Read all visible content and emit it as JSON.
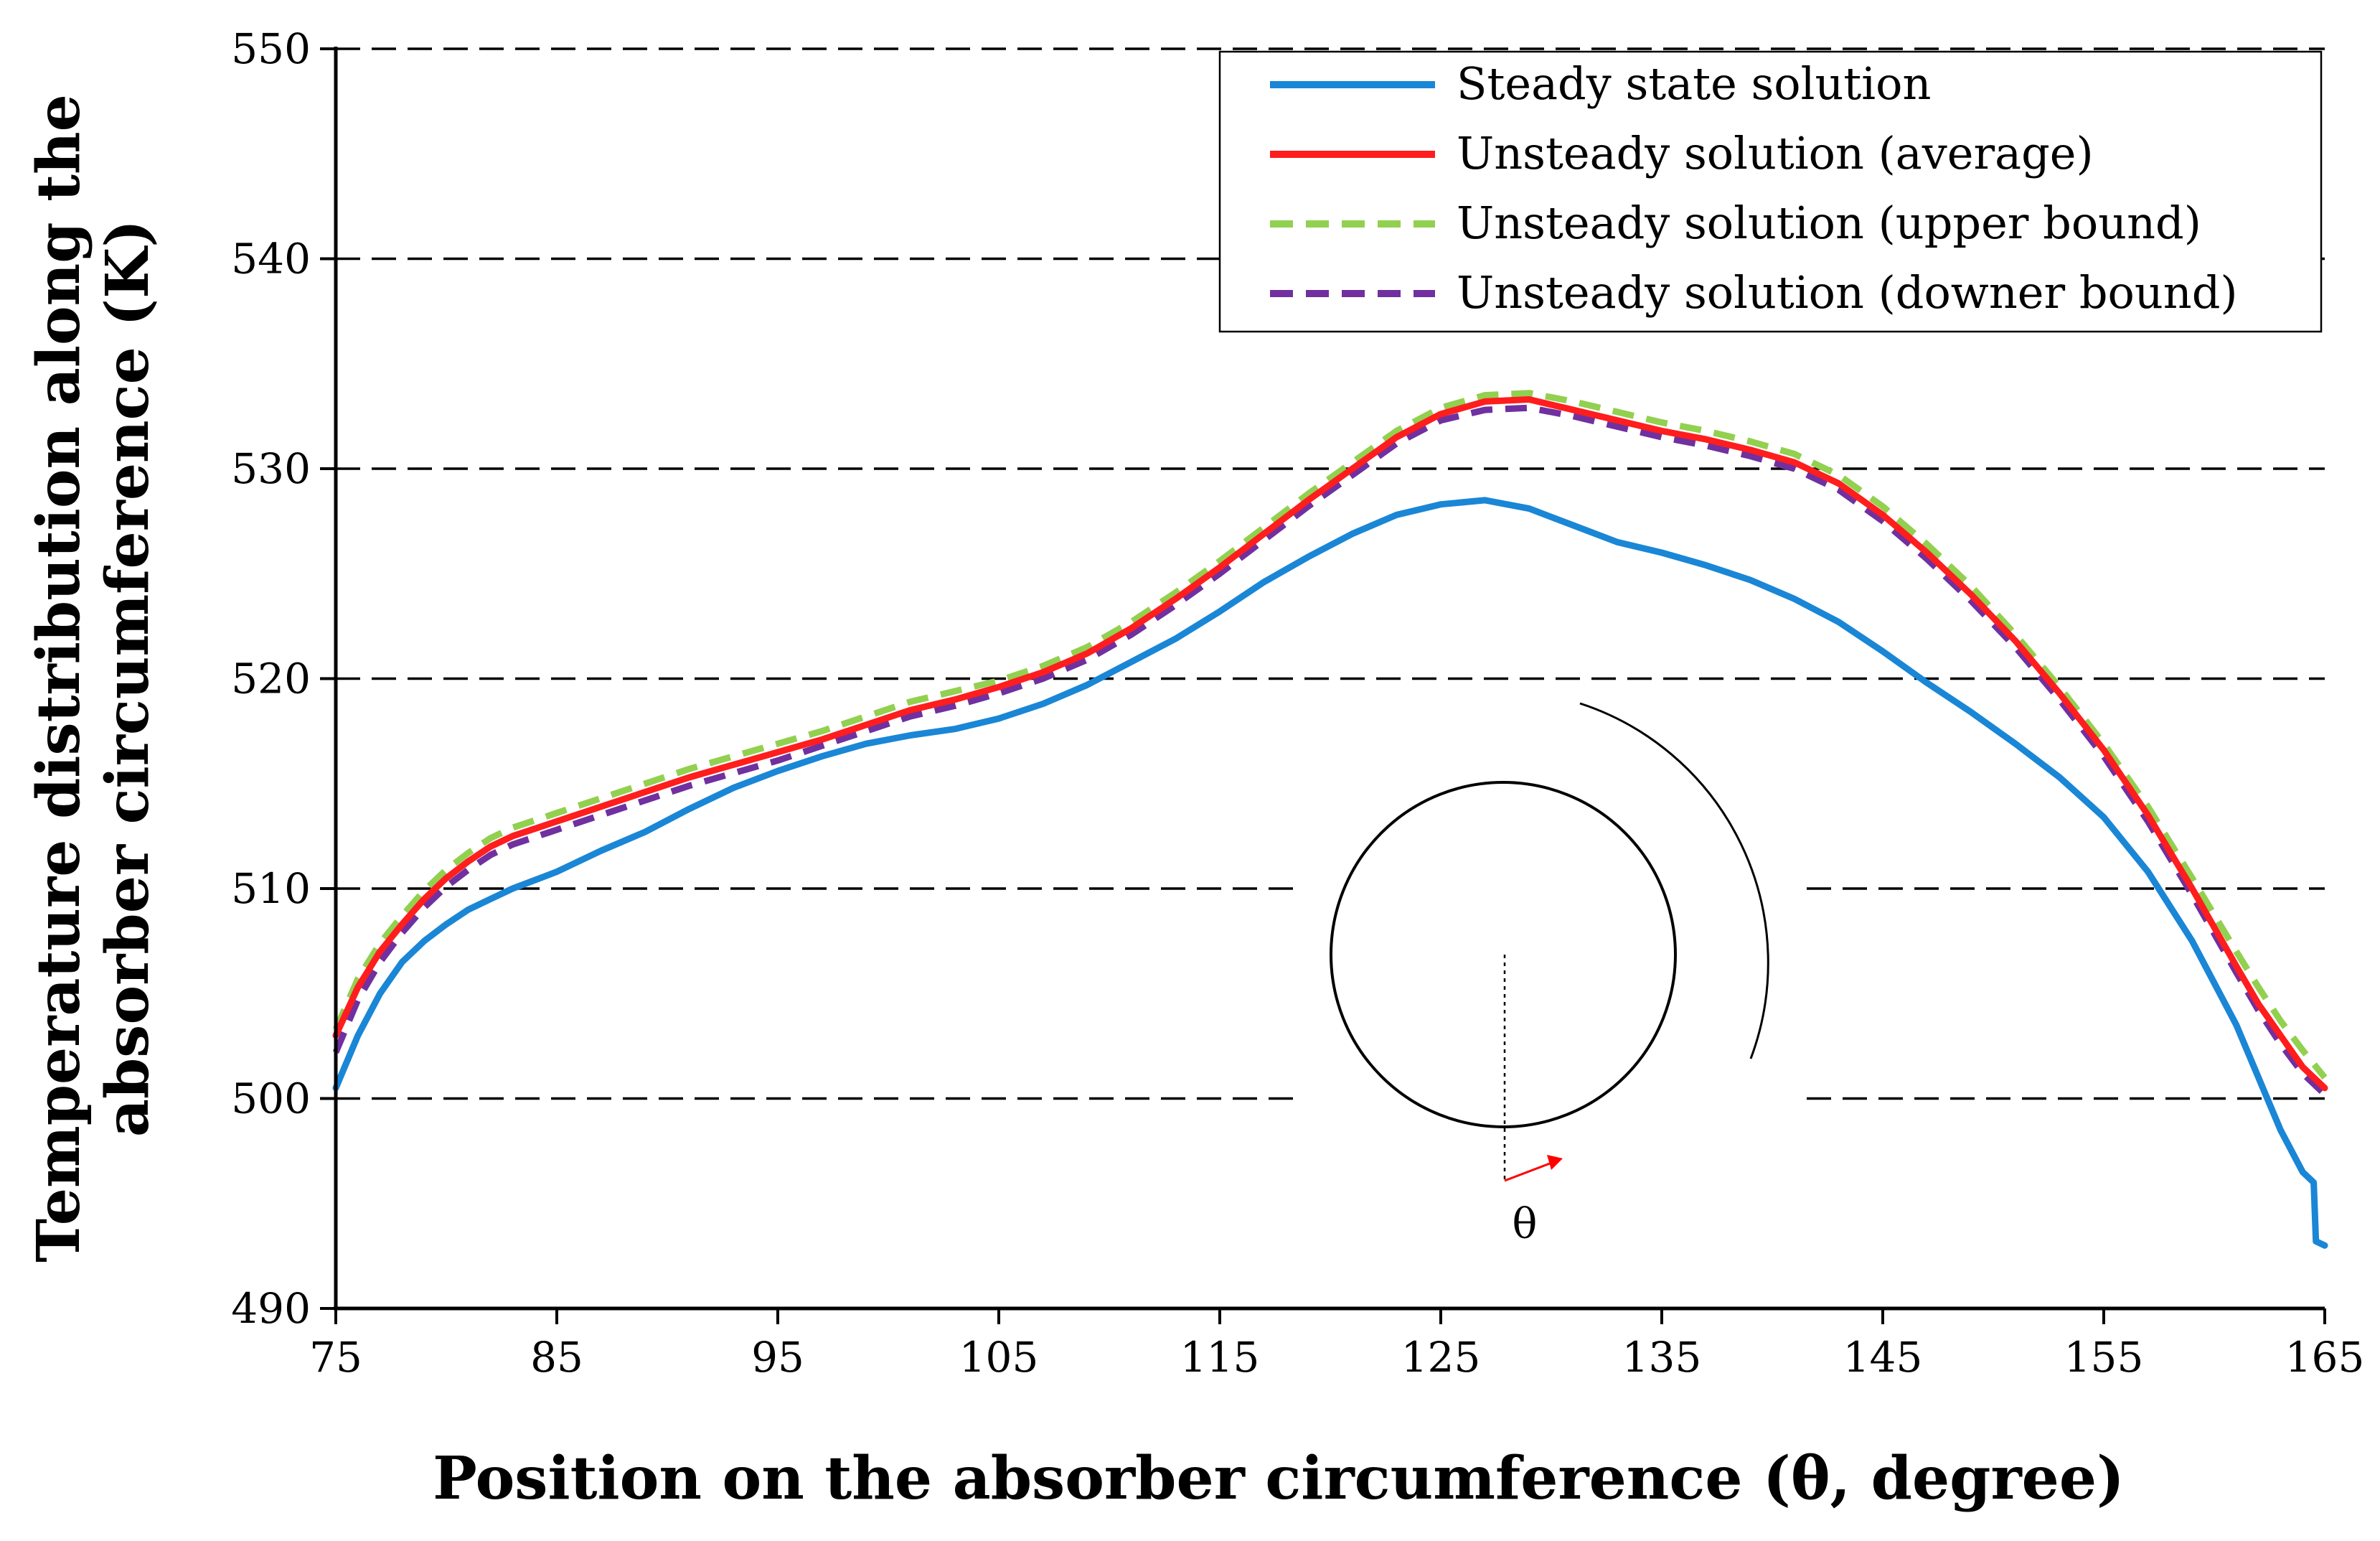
{
  "chart_data": {
    "type": "line",
    "title": "",
    "xlabel": "Position on the absorber circumference (θ, degree)",
    "ylabel_line1": "Temperature distribution  along the",
    "ylabel_line2": "absorber circumference (K)",
    "xlim": [
      75,
      165
    ],
    "ylim": [
      490,
      550
    ],
    "xticks": [
      75,
      85,
      95,
      105,
      115,
      125,
      135,
      145,
      155,
      165
    ],
    "yticks": [
      490,
      500,
      510,
      520,
      530,
      540,
      550
    ],
    "grid": "horizontal-dashed",
    "legend_position": "top-right",
    "inset_label": "θ",
    "series": [
      {
        "name": "Steady state solution",
        "color": "#1a86d6",
        "dash": "solid",
        "x": [
          75,
          76,
          77,
          78,
          79,
          80,
          81,
          82,
          83,
          85,
          87,
          89,
          91,
          93,
          95,
          97,
          99,
          101,
          103,
          105,
          107,
          109,
          111,
          113,
          115,
          117,
          119,
          121,
          123,
          125,
          127,
          129,
          131,
          133,
          135,
          137,
          139,
          141,
          143,
          145,
          147,
          149,
          151,
          153,
          155,
          157,
          159,
          161,
          162,
          163,
          164,
          164.5,
          164.6,
          165
        ],
        "values": [
          500.5,
          503.0,
          505.0,
          506.5,
          507.5,
          508.3,
          509.0,
          509.5,
          510.0,
          510.8,
          511.8,
          512.7,
          513.8,
          514.8,
          515.6,
          516.3,
          516.9,
          517.3,
          517.6,
          518.1,
          518.8,
          519.7,
          520.8,
          521.9,
          523.2,
          524.6,
          525.8,
          526.9,
          527.8,
          528.3,
          528.5,
          528.1,
          527.3,
          526.5,
          526.0,
          525.4,
          524.7,
          523.8,
          522.7,
          521.3,
          519.8,
          518.4,
          516.9,
          515.3,
          513.4,
          510.8,
          507.5,
          503.5,
          501.0,
          498.5,
          496.5,
          496.0,
          493.2,
          493.0
        ]
      },
      {
        "name": "Unsteady solution (average)",
        "color": "#ff1d1d",
        "dash": "solid",
        "x": [
          75,
          76,
          77,
          78,
          79,
          80,
          81,
          82,
          83,
          85,
          87,
          89,
          91,
          93,
          95,
          97,
          99,
          101,
          103,
          105,
          107,
          109,
          111,
          113,
          115,
          117,
          119,
          121,
          123,
          125,
          127,
          129,
          131,
          133,
          135,
          137,
          139,
          141,
          143,
          145,
          147,
          149,
          151,
          153,
          155,
          157,
          159,
          161,
          162,
          163,
          164,
          165
        ],
        "values": [
          503.0,
          505.3,
          507.0,
          508.3,
          509.5,
          510.5,
          511.3,
          512.0,
          512.5,
          513.2,
          513.9,
          514.6,
          515.3,
          515.9,
          516.5,
          517.1,
          517.8,
          518.5,
          519.0,
          519.6,
          520.3,
          521.2,
          522.4,
          523.8,
          525.3,
          526.9,
          528.5,
          530.0,
          531.5,
          532.6,
          533.2,
          533.3,
          532.8,
          532.3,
          531.8,
          531.4,
          530.9,
          530.3,
          529.3,
          527.8,
          526.0,
          524.0,
          521.8,
          519.3,
          516.6,
          513.5,
          510.0,
          506.3,
          504.5,
          503.0,
          501.5,
          500.5
        ]
      },
      {
        "name": "Unsteady solution (upper bound)",
        "color": "#92d050",
        "dash": "dashed",
        "x": [
          75,
          76,
          77,
          78,
          79,
          80,
          81,
          82,
          83,
          85,
          87,
          89,
          91,
          93,
          95,
          97,
          99,
          101,
          103,
          105,
          107,
          109,
          111,
          113,
          115,
          117,
          119,
          121,
          123,
          125,
          127,
          129,
          131,
          133,
          135,
          137,
          139,
          141,
          143,
          145,
          147,
          149,
          151,
          153,
          155,
          157,
          159,
          161,
          162,
          163,
          164,
          165
        ],
        "values": [
          503.3,
          505.7,
          507.4,
          508.7,
          509.9,
          510.9,
          511.7,
          512.4,
          512.9,
          513.6,
          514.3,
          515.0,
          515.7,
          516.3,
          516.9,
          517.5,
          518.2,
          518.9,
          519.4,
          519.9,
          520.6,
          521.5,
          522.7,
          524.1,
          525.6,
          527.2,
          528.8,
          530.3,
          531.8,
          532.9,
          533.5,
          533.6,
          533.2,
          532.7,
          532.2,
          531.8,
          531.3,
          530.7,
          529.7,
          528.2,
          526.4,
          524.4,
          522.1,
          519.6,
          516.9,
          513.9,
          510.5,
          507.0,
          505.3,
          503.7,
          502.3,
          501.0
        ]
      },
      {
        "name": "Unsteady solution (downer bound)",
        "color": "#7030a0",
        "dash": "dashed",
        "x": [
          75,
          76,
          77,
          78,
          79,
          80,
          81,
          82,
          83,
          85,
          87,
          89,
          91,
          93,
          95,
          97,
          99,
          101,
          103,
          105,
          107,
          109,
          111,
          113,
          115,
          117,
          119,
          121,
          123,
          125,
          127,
          129,
          131,
          133,
          135,
          137,
          139,
          141,
          143,
          145,
          147,
          149,
          151,
          153,
          155,
          157,
          159,
          161,
          162,
          163,
          164,
          165
        ],
        "values": [
          502.2,
          504.7,
          506.5,
          507.9,
          509.1,
          510.1,
          510.9,
          511.6,
          512.1,
          512.8,
          513.5,
          514.2,
          514.9,
          515.5,
          516.1,
          516.8,
          517.5,
          518.2,
          518.7,
          519.3,
          520.0,
          520.9,
          522.1,
          523.5,
          525.0,
          526.6,
          528.2,
          529.7,
          531.2,
          532.3,
          532.8,
          532.9,
          532.5,
          532.0,
          531.5,
          531.1,
          530.6,
          530.0,
          529.0,
          527.5,
          525.7,
          523.7,
          521.5,
          519.0,
          516.3,
          513.2,
          509.7,
          506.0,
          504.2,
          502.6,
          501.2,
          500.2
        ]
      }
    ]
  }
}
